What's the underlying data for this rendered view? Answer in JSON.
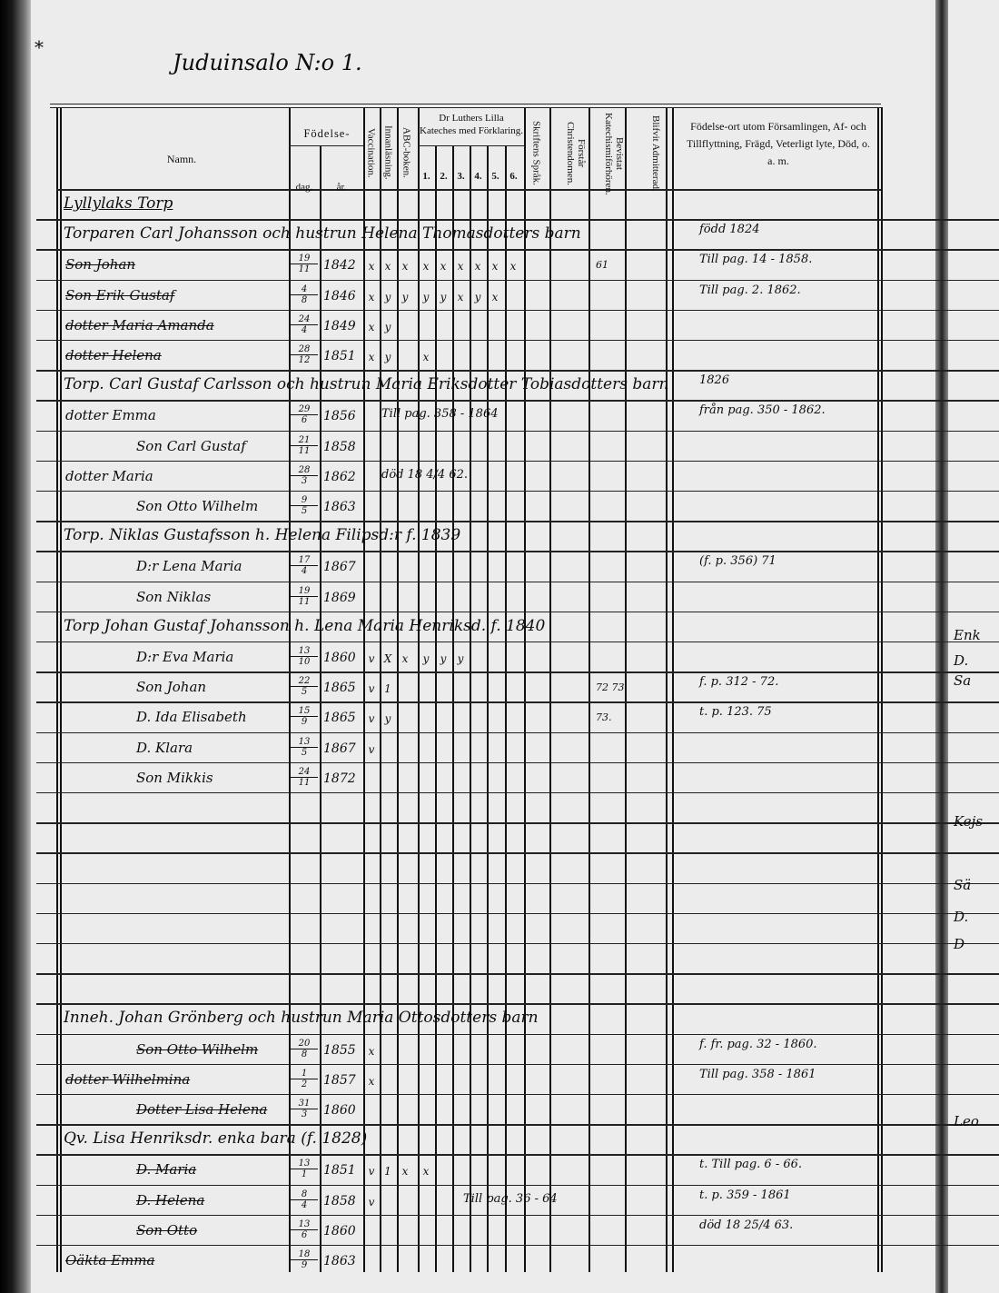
{
  "page_title": "Juduinsalo N:o 1.",
  "corner_mark": "*",
  "headers": {
    "name": "Namn.",
    "birth": "Födelse-",
    "day": "dag.",
    "year": "år.",
    "vaccination": "Vaccination.",
    "reading": "Innanläsning.",
    "abc": "ABC-boken.",
    "catechism": "Dr Luthers Lilla Kateches med Förklaring.",
    "catechism_parts": [
      "1.",
      "2.",
      "3.",
      "4.",
      "5.",
      "6."
    ],
    "scripture": "Skriftens Språk.",
    "understands": "Förstår Christendomen.",
    "attended": "Bevistat Katechismiförhören.",
    "admitted": "Blifvit Admitterad.",
    "remarks": "Födelse-ort utom Församlingen, Af- och Tillflyttning, Frägd, Veterligt lyte, Död, o. a. m."
  },
  "rows": [
    {
      "heading": "Lyllylaks Torp"
    },
    {
      "heading": "Torparen Carl Johansson och hustrun Helena Thomasdotters barn",
      "remark": "född 1824"
    },
    {
      "name": "Son Johan",
      "struck": true,
      "day": "19",
      "month": "11",
      "year": "1842",
      "marks": [
        "x",
        "x",
        "x",
        "x",
        "x",
        "x",
        "x",
        "x",
        "x"
      ],
      "attended": "61",
      "remark": "Till pag. 14 - 1858."
    },
    {
      "name": "Son Erik Gustaf",
      "struck": true,
      "day": "4",
      "month": "8",
      "year": "1846",
      "marks": [
        "x",
        "y",
        "y",
        "y",
        "y",
        "x",
        "y",
        "x",
        ""
      ],
      "remark": "Till pag. 2. 1862."
    },
    {
      "name": "dotter Maria Amanda",
      "struck": true,
      "day": "24",
      "month": "4",
      "year": "1849",
      "marks": [
        "x",
        "y",
        "",
        "",
        "",
        "",
        "",
        "",
        ""
      ]
    },
    {
      "name": "dotter Helena",
      "struck": true,
      "day": "28",
      "month": "12",
      "year": "1851",
      "marks": [
        "x",
        "y",
        "",
        "x",
        "",
        "",
        "",
        "",
        ""
      ]
    },
    {
      "heading": "Torp. Carl Gustaf Carlsson och hustrun Maria Eriksdotter Tobiasdotters barn",
      "remark": "1826"
    },
    {
      "name": "dotter Emma",
      "day": "29",
      "month": "6",
      "year": "1856",
      "note": "Till pag. 358 - 1864",
      "remark": "från pag. 350 - 1862."
    },
    {
      "name": "Son Carl Gustaf",
      "day": "21",
      "month": "11",
      "year": "1858"
    },
    {
      "name": "dotter Maria",
      "day": "28",
      "month": "3",
      "year": "1862",
      "note": "död 18 4/4 62."
    },
    {
      "name": "Son Otto Wilhelm",
      "day": "9",
      "month": "5",
      "year": "1863"
    },
    {
      "heading": "Torp. Niklas Gustafsson h. Helena Filipsd:r f. 1839"
    },
    {
      "name": "D:r Lena Maria",
      "day": "17",
      "month": "4",
      "year": "1867",
      "remark": "(f. p. 356) 71"
    },
    {
      "name": "Son Niklas",
      "day": "19",
      "month": "11",
      "year": "1869"
    },
    {
      "heading": "Torp Johan Gustaf Johansson h. Lena Maria Henriksd. f. 1840"
    },
    {
      "name": "D:r Eva Maria",
      "day": "13",
      "month": "10",
      "year": "1860",
      "marks": [
        "v",
        "X",
        "x",
        "y",
        "y",
        "y",
        "",
        "",
        ""
      ]
    },
    {
      "name": "Son Johan",
      "day": "22",
      "month": "5",
      "year": "1865",
      "marks": [
        "v",
        "1",
        "",
        "",
        "",
        "",
        "",
        "",
        ""
      ],
      "attended": "72 73",
      "remark": "f. p. 312 - 72."
    },
    {
      "name": "D. Ida Elisabeth",
      "day": "15",
      "month": "9",
      "year": "1865",
      "marks": [
        "v",
        "y",
        "",
        "",
        "",
        "",
        "",
        "",
        ""
      ],
      "attended": "73.",
      "remark": "t. p. 123. 75"
    },
    {
      "name": "D. Klara",
      "day": "13",
      "month": "5",
      "year": "1867",
      "marks": [
        "v",
        "",
        "",
        "",
        "",
        "",
        "",
        "",
        ""
      ]
    },
    {
      "name": "Son Mikkis",
      "day": "24",
      "month": "11",
      "year": "1872"
    },
    {},
    {},
    {},
    {},
    {},
    {},
    {},
    {
      "heading": "Inneh. Johan Grönberg och hustrun Maria Ottosdotters barn"
    },
    {
      "name": "Son Otto Wilhelm",
      "struck": true,
      "day": "20",
      "month": "8",
      "year": "1855",
      "marks": [
        "x",
        "",
        "",
        "",
        "",
        "",
        "",
        "",
        ""
      ],
      "remark": "f. fr. pag. 32 - 1860."
    },
    {
      "name": "dotter Wilhelmina",
      "struck": true,
      "day": "1",
      "month": "2",
      "year": "1857",
      "marks": [
        "x",
        "",
        "",
        "",
        "",
        "",
        "",
        "",
        ""
      ],
      "remark": "Till pag. 358 - 1861"
    },
    {
      "name": "Dotter Lisa Helena",
      "struck": true,
      "day": "31",
      "month": "3",
      "year": "1860"
    },
    {
      "heading": "Qv. Lisa Henriksdr. enka bara (f. 1828)"
    },
    {
      "name": "D. Maria",
      "struck": true,
      "day": "13",
      "month": "1",
      "year": "1851",
      "marks": [
        "v",
        "1",
        "x",
        "x",
        "",
        "",
        "",
        "",
        ""
      ],
      "remark": "t. Till pag. 6 - 66."
    },
    {
      "name": "D. Helena",
      "struck": true,
      "day": "8",
      "month": "4",
      "year": "1858",
      "marks": [
        "v",
        "",
        "",
        "",
        "",
        "",
        "",
        "",
        ""
      ],
      "note": "Till pag. 36 - 64",
      "remark": "t. p. 359 - 1861"
    },
    {
      "name": "Son Otto",
      "struck": true,
      "day": "13",
      "month": "6",
      "year": "1860",
      "remark": "död 18 25/4 63."
    },
    {
      "name": "Oäkta Emma",
      "struck": true,
      "day": "18",
      "month": "9",
      "year": "1863"
    }
  ],
  "facing_page_fragments": [
    "Enk",
    "D.",
    "Sa",
    "Kejs",
    "Sä",
    "D.",
    "D",
    "Leo"
  ]
}
